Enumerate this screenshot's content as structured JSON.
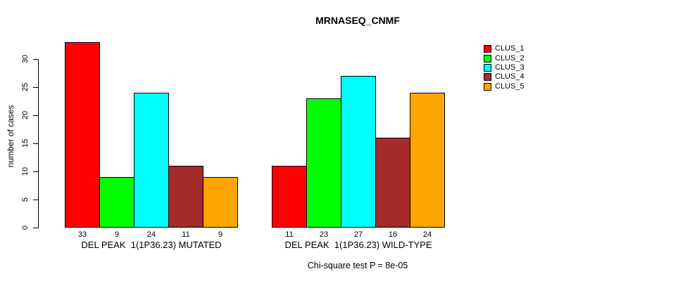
{
  "chart_data": {
    "type": "bar",
    "title": "MRNASEQ_CNMF",
    "xlabel": "",
    "ylabel": "number of cases",
    "ylim": [
      0,
      33
    ],
    "yticks": [
      0,
      5,
      10,
      15,
      20,
      25,
      30
    ],
    "grid": false,
    "legend_position": "right",
    "bar_value_labels": true,
    "bar_border_color": "#000000",
    "categories": [
      "DEL PEAK  1(1P36.23) MUTATED",
      "DEL PEAK  1(1P36.23) WILD-TYPE"
    ],
    "series": [
      {
        "name": "CLUS_1",
        "color": "#FF0000",
        "values": [
          33,
          11
        ]
      },
      {
        "name": "CLUS_2",
        "color": "#00FF00",
        "values": [
          9,
          23
        ]
      },
      {
        "name": "CLUS_3",
        "color": "#00FFFF",
        "values": [
          24,
          27
        ]
      },
      {
        "name": "CLUS_4",
        "color": "#A52A2A",
        "values": [
          11,
          16
        ]
      },
      {
        "name": "CLUS_5",
        "color": "#FFA500",
        "values": [
          9,
          24
        ]
      }
    ],
    "annotation": "Chi-square test P = 8e-05"
  }
}
